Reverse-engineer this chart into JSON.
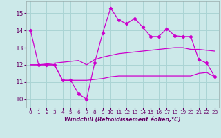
{
  "xlabel": "Windchill (Refroidissement éolien,°C)",
  "background_color": "#cce9e9",
  "grid_color": "#aad4d4",
  "line_color": "#cc00cc",
  "ylim": [
    9.5,
    15.7
  ],
  "xlim": [
    -0.5,
    23.5
  ],
  "yticks": [
    10,
    11,
    12,
    13,
    14,
    15
  ],
  "xticks": [
    0,
    1,
    2,
    3,
    4,
    5,
    6,
    7,
    8,
    9,
    10,
    11,
    12,
    13,
    14,
    15,
    16,
    17,
    18,
    19,
    20,
    21,
    22,
    23
  ],
  "series1_x": [
    0,
    1,
    2,
    3,
    4,
    5,
    6,
    7,
    8,
    9,
    10,
    11,
    12,
    13,
    14,
    15,
    16,
    17,
    18,
    19,
    20,
    21,
    22,
    23
  ],
  "series1_y": [
    14.0,
    12.0,
    12.0,
    12.0,
    11.1,
    11.1,
    10.3,
    10.0,
    12.1,
    13.85,
    15.3,
    14.6,
    14.4,
    14.7,
    14.2,
    13.65,
    13.65,
    14.1,
    13.7,
    13.65,
    13.65,
    12.3,
    12.1,
    11.3
  ],
  "series2_x": [
    0,
    1,
    2,
    3,
    4,
    5,
    6,
    7,
    8,
    9,
    10,
    11,
    12,
    13,
    14,
    15,
    16,
    17,
    18,
    19,
    20,
    21,
    22,
    23
  ],
  "series2_y": [
    12.0,
    12.0,
    12.05,
    12.1,
    12.15,
    12.2,
    12.25,
    12.0,
    12.3,
    12.45,
    12.55,
    12.65,
    12.7,
    12.75,
    12.8,
    12.85,
    12.9,
    12.95,
    13.0,
    13.0,
    12.9,
    12.9,
    12.85,
    12.8
  ],
  "series3_x": [
    0,
    1,
    2,
    3,
    4,
    5,
    6,
    7,
    8,
    9,
    10,
    11,
    12,
    13,
    14,
    15,
    16,
    17,
    18,
    19,
    20,
    21,
    22,
    23
  ],
  "series3_y": [
    12.0,
    12.0,
    12.0,
    12.0,
    11.1,
    11.1,
    11.1,
    11.1,
    11.15,
    11.2,
    11.3,
    11.35,
    11.35,
    11.35,
    11.35,
    11.35,
    11.35,
    11.35,
    11.35,
    11.35,
    11.35,
    11.5,
    11.55,
    11.3
  ],
  "tick_color": "#660066",
  "xlabel_fontsize": 5.8,
  "ytick_fontsize": 6.5,
  "xtick_fontsize": 5.2
}
